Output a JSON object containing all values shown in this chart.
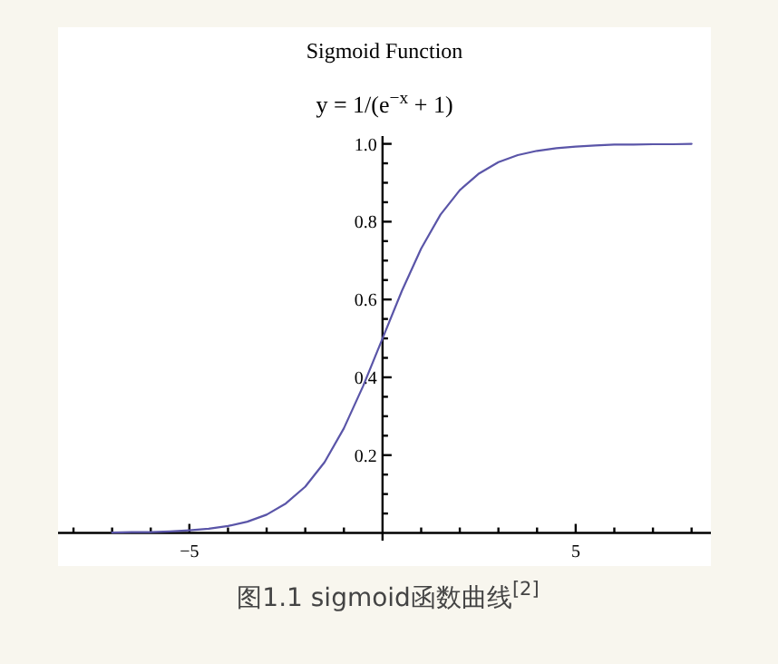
{
  "chart_data": {
    "type": "line",
    "title": "Sigmoid Function",
    "subtitle": "y = 1/(e$^{−x}$ + 1)",
    "annotations": [
      "图1.1 sigmoid函数曲线$^{[2]}$"
    ],
    "x": [
      -7,
      -6.5,
      -6,
      -5.5,
      -5,
      -4.5,
      -4,
      -3.5,
      -3,
      -2.5,
      -2,
      -1.5,
      -1,
      -0.5,
      0,
      0.5,
      1,
      1.5,
      2,
      2.5,
      3,
      3.5,
      4,
      4.5,
      5,
      5.5,
      6,
      6.5,
      7,
      7.5,
      8
    ],
    "series": [
      {
        "color": "#5a55a8",
        "values": [
          0.001,
          0.002,
          0.002,
          0.004,
          0.007,
          0.011,
          0.018,
          0.029,
          0.047,
          0.076,
          0.119,
          0.182,
          0.269,
          0.378,
          0.5,
          0.622,
          0.731,
          0.818,
          0.881,
          0.924,
          0.953,
          0.971,
          0.982,
          0.989,
          0.993,
          0.996,
          0.998,
          0.998,
          0.999,
          0.999,
          1.0
        ]
      }
    ],
    "xlim": [
      -8.4,
      8.5
    ],
    "ylim": [
      -0.085,
      1.02
    ],
    "xticks": [
      {
        "value": -8,
        "label": null
      },
      {
        "value": -7,
        "label": null
      },
      {
        "value": -6,
        "label": null
      },
      {
        "value": -5,
        "label": "−5"
      },
      {
        "value": -4,
        "label": null
      },
      {
        "value": -3,
        "label": null
      },
      {
        "value": -2,
        "label": null
      },
      {
        "value": -1,
        "label": null
      },
      {
        "value": 1,
        "label": null
      },
      {
        "value": 2,
        "label": null
      },
      {
        "value": 3,
        "label": null
      },
      {
        "value": 4,
        "label": null
      },
      5,
      {
        "value": 6,
        "label": null
      },
      {
        "value": 7,
        "label": null
      },
      {
        "value": 8,
        "label": null
      }
    ],
    "yticks": [
      {
        "value": 0.05,
        "label": null
      },
      {
        "value": 0.1,
        "label": null
      },
      {
        "value": 0.15,
        "label": null
      },
      0.2,
      {
        "value": 0.25,
        "label": null
      },
      {
        "value": 0.3,
        "label": null
      },
      {
        "value": 0.35,
        "label": null
      },
      0.4,
      {
        "value": 0.45,
        "label": null
      },
      {
        "value": 0.5,
        "label": null
      },
      {
        "value": 0.55,
        "label": null
      },
      0.6,
      {
        "value": 0.65,
        "label": null
      },
      {
        "value": 0.7,
        "label": null
      },
      {
        "value": 0.75,
        "label": null
      },
      0.8,
      {
        "value": 0.85,
        "label": null
      },
      {
        "value": 0.9,
        "label": null
      },
      {
        "value": 0.95,
        "label": null
      },
      {
        "value": 1,
        "label": "1.0"
      }
    ],
    "grid": false,
    "marker": "none",
    "line_style": "solid"
  }
}
